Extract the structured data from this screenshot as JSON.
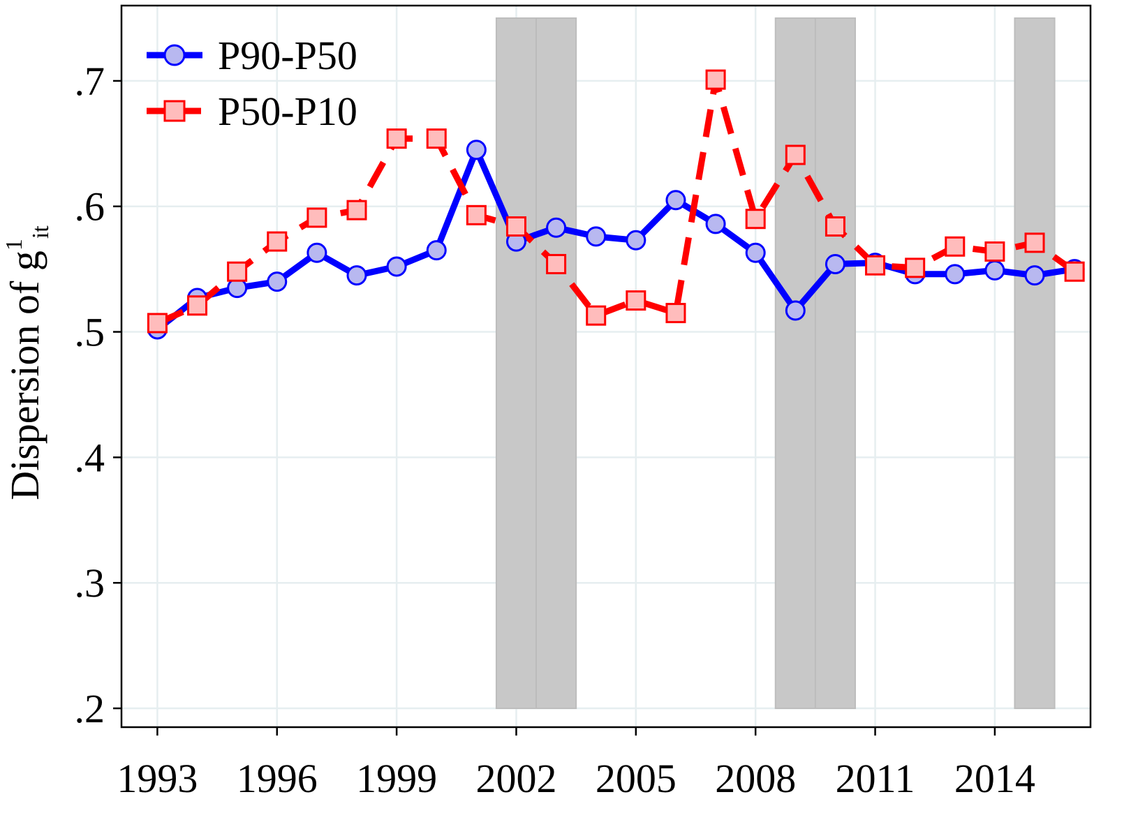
{
  "chart_data": {
    "type": "line",
    "ylabel": {
      "main": "Dispersion of g",
      "sup": "1",
      "sub": "it"
    },
    "xlabel": "",
    "title": "",
    "xlim": [
      1992.1,
      2016.4
    ],
    "ylim": [
      0.185,
      0.76
    ],
    "xticks": [
      1993,
      1996,
      1999,
      2002,
      2005,
      2008,
      2011,
      2014
    ],
    "xtick_labels": [
      "1993",
      "1996",
      "1999",
      "2002",
      "2005",
      "2008",
      "2011",
      "2014"
    ],
    "yticks": [
      0.2,
      0.3,
      0.4,
      0.5,
      0.6,
      0.7
    ],
    "ytick_labels": [
      ".2",
      ".3",
      ".4",
      ".5",
      ".6",
      ".7"
    ],
    "grid": true,
    "legend_position": "top-left",
    "shaded_periods": [
      {
        "start": 2001.5,
        "end": 2003.5,
        "ymin": 0.2,
        "ymax": 0.75
      },
      {
        "start": 2008.5,
        "end": 2010.5,
        "ymin": 0.2,
        "ymax": 0.75
      },
      {
        "start": 2014.5,
        "end": 2015.5,
        "ymin": 0.2,
        "ymax": 0.75
      }
    ],
    "shade_dividers": [
      2002.5,
      2009.5
    ],
    "series": [
      {
        "name": "P90-P50",
        "color": "#0000ff",
        "marker": "circle",
        "marker_fill": "#b8b8f0",
        "line_style": "solid",
        "x": [
          1993,
          1994,
          1995,
          1996,
          1997,
          1998,
          1999,
          2000,
          2001,
          2002,
          2003,
          2004,
          2005,
          2006,
          2007,
          2008,
          2009,
          2010,
          2011,
          2012,
          2013,
          2014,
          2015,
          2016
        ],
        "values": [
          0.502,
          0.527,
          0.535,
          0.54,
          0.563,
          0.545,
          0.552,
          0.565,
          0.645,
          0.572,
          0.583,
          0.576,
          0.573,
          0.605,
          0.586,
          0.563,
          0.517,
          0.554,
          0.555,
          0.546,
          0.546,
          0.549,
          0.545,
          0.55
        ]
      },
      {
        "name": "P50-P10",
        "color": "#ff0000",
        "marker": "square",
        "marker_fill": "#ffbcbc",
        "line_style": "dashed",
        "x": [
          1993,
          1994,
          1995,
          1996,
          1997,
          1998,
          1999,
          2000,
          2001,
          2002,
          2003,
          2004,
          2005,
          2006,
          2007,
          2008,
          2009,
          2010,
          2011,
          2012,
          2013,
          2014,
          2015,
          2016
        ],
        "values": [
          0.507,
          0.521,
          0.548,
          0.572,
          0.591,
          0.597,
          0.654,
          0.654,
          0.593,
          0.584,
          0.554,
          0.513,
          0.525,
          0.515,
          0.701,
          0.59,
          0.641,
          0.584,
          0.553,
          0.551,
          0.568,
          0.564,
          0.571,
          0.548
        ]
      }
    ]
  }
}
